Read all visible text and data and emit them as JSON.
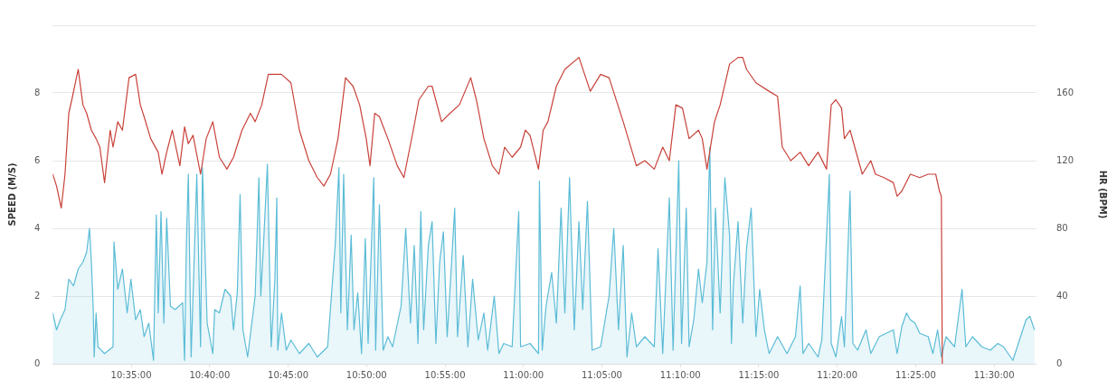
{
  "chart_data": {
    "type": "line",
    "ylabel": "SPEED (M/S)",
    "y2label": "HR (BPM)",
    "grid": "y",
    "xlim": [
      10.5,
      11.545
    ],
    "xticks": [
      {
        "value": 10.5833,
        "label": "10:35:00"
      },
      {
        "value": 10.6667,
        "label": "10:40:00"
      },
      {
        "value": 10.75,
        "label": "10:45:00"
      },
      {
        "value": 10.8333,
        "label": "10:50:00"
      },
      {
        "value": 10.9167,
        "label": "10:55:00"
      },
      {
        "value": 11,
        "label": "11:00:00"
      },
      {
        "value": 11.0833,
        "label": "11:05:00"
      },
      {
        "value": 11.1667,
        "label": "11:10:00"
      },
      {
        "value": 11.25,
        "label": "11:15:00"
      },
      {
        "value": 11.3333,
        "label": "11:20:00"
      },
      {
        "value": 11.4167,
        "label": "11:25:00"
      },
      {
        "value": 11.5,
        "label": "11:30:00"
      }
    ],
    "ylim": [
      0,
      10
    ],
    "yticks": [
      0,
      2,
      4,
      6,
      8,
      {
        "value": 10,
        "label": null
      }
    ],
    "y2lim": [
      0,
      200
    ],
    "y2ticks": [
      0,
      40,
      80,
      120,
      160
    ],
    "series": [
      {
        "type": "area",
        "color": "#5bbcd6",
        "x": [
          10.5,
          10.504,
          10.508,
          10.513,
          10.517,
          10.522,
          10.527,
          10.532,
          10.536,
          10.539,
          10.541,
          10.543,
          10.544,
          10.546,
          10.548,
          10.555,
          10.564,
          10.565,
          10.569,
          10.574,
          10.579,
          10.583,
          10.588,
          10.593,
          10.597,
          10.602,
          10.607,
          10.61,
          10.612,
          10.615,
          10.618,
          10.621,
          10.625,
          10.63,
          10.638,
          10.64,
          10.642,
          10.644,
          10.647,
          10.653,
          10.657,
          10.659,
          10.664,
          10.67,
          10.672,
          10.677,
          10.683,
          10.689,
          10.692,
          10.696,
          10.699,
          10.702,
          10.707,
          10.715,
          10.719,
          10.721,
          10.724,
          10.728,
          10.732,
          10.736,
          10.738,
          10.739,
          10.743,
          10.748,
          10.753,
          10.762,
          10.772,
          10.781,
          10.792,
          10.796,
          10.8,
          10.804,
          10.806,
          10.809,
          10.813,
          10.817,
          10.82,
          10.824,
          10.828,
          10.832,
          10.835,
          10.841,
          10.843,
          10.847,
          10.851,
          10.856,
          10.861,
          10.87,
          10.875,
          10.88,
          10.884,
          10.888,
          10.891,
          10.894,
          10.899,
          10.903,
          10.907,
          10.911,
          10.915,
          10.919,
          10.922,
          10.927,
          10.93,
          10.936,
          10.941,
          10.946,
          10.952,
          10.958,
          10.962,
          10.969,
          10.974,
          10.979,
          10.988,
          10.995,
          10.997,
          11.007,
          11.016,
          11.017,
          11.02,
          11.024,
          11.03,
          11.035,
          11.04,
          11.044,
          11.049,
          11.054,
          11.059,
          11.063,
          11.068,
          11.073,
          11.082,
          11.091,
          11.096,
          11.101,
          11.106,
          11.11,
          11.115,
          11.12,
          11.129,
          11.139,
          11.143,
          11.148,
          11.155,
          11.159,
          11.165,
          11.168,
          11.173,
          11.176,
          11.181,
          11.186,
          11.19,
          11.195,
          11.198,
          11.201,
          11.204,
          11.209,
          11.214,
          11.219,
          11.221,
          11.223,
          11.228,
          11.233,
          11.237,
          11.242,
          11.247,
          11.251,
          11.256,
          11.261,
          11.27,
          11.28,
          11.289,
          11.294,
          11.297,
          11.303,
          11.313,
          11.317,
          11.325,
          11.327,
          11.332,
          11.338,
          11.341,
          11.347,
          11.35,
          11.355,
          11.364,
          11.369,
          11.378,
          11.393,
          11.397,
          11.402,
          11.407,
          11.411,
          11.416,
          11.421,
          11.43,
          11.435,
          11.44,
          11.444,
          11.449,
          11.458,
          11.466,
          11.47,
          11.477,
          11.487,
          11.496,
          11.504,
          11.51,
          11.515,
          11.52,
          11.534,
          11.538,
          11.543
        ],
        "values": [
          1.5,
          1.0,
          1.3,
          1.6,
          2.5,
          2.3,
          2.8,
          3.0,
          3.3,
          4.0,
          3.0,
          1.6,
          0.2,
          1.5,
          0.5,
          0.3,
          0.5,
          3.6,
          2.2,
          2.8,
          1.5,
          2.5,
          1.3,
          1.6,
          0.8,
          1.2,
          0.1,
          4.4,
          1.5,
          4.5,
          1.2,
          4.3,
          1.7,
          1.6,
          1.8,
          0.1,
          3.6,
          5.6,
          0.2,
          5.6,
          0.5,
          5.8,
          1.2,
          0.3,
          1.6,
          1.5,
          2.2,
          2.0,
          1.0,
          2.1,
          5.0,
          1.0,
          0.2,
          2.0,
          5.5,
          2.0,
          3.6,
          5.9,
          0.5,
          2.5,
          4.9,
          0.4,
          1.5,
          0.4,
          0.7,
          0.3,
          0.6,
          0.2,
          0.5,
          2.0,
          3.5,
          5.8,
          1.5,
          5.6,
          1.0,
          3.8,
          1.0,
          2.1,
          0.3,
          3.7,
          0.6,
          5.5,
          0.4,
          4.7,
          0.4,
          0.8,
          0.5,
          1.7,
          4.0,
          1.2,
          3.5,
          0.6,
          4.5,
          1.0,
          3.5,
          4.2,
          0.6,
          3.0,
          3.9,
          0.8,
          2.2,
          4.6,
          0.8,
          3.2,
          0.5,
          2.5,
          0.7,
          1.5,
          0.4,
          2.0,
          0.3,
          0.6,
          0.5,
          4.5,
          0.5,
          0.6,
          0.3,
          5.4,
          0.4,
          1.7,
          2.7,
          1.2,
          4.6,
          1.5,
          5.5,
          1.0,
          4.2,
          1.6,
          4.8,
          0.4,
          0.5,
          2.0,
          4.0,
          1.0,
          3.5,
          0.2,
          1.5,
          0.5,
          0.8,
          0.5,
          3.4,
          0.3,
          4.9,
          0.4,
          6.0,
          0.6,
          4.6,
          0.5,
          1.3,
          2.8,
          1.8,
          3.0,
          6.4,
          1.0,
          4.6,
          1.5,
          5.5,
          3.8,
          0.6,
          2.3,
          4.2,
          1.2,
          3.4,
          4.6,
          0.8,
          2.2,
          1.0,
          0.3,
          0.8,
          0.3,
          0.8,
          2.3,
          0.3,
          0.6,
          0.2,
          0.7,
          5.6,
          0.6,
          0.2,
          1.4,
          0.5,
          5.1,
          0.6,
          0.4,
          1.0,
          0.3,
          0.8,
          1.0,
          0.3,
          1.1,
          1.5,
          1.3,
          1.2,
          0.9,
          0.8,
          0.3,
          1.0,
          0.2,
          0.8,
          0.5,
          2.2,
          0.5,
          0.8,
          0.5,
          0.4,
          0.6,
          0.5,
          0.3,
          0.1,
          1.3,
          1.4,
          1.0
        ]
      },
      {
        "type": "line",
        "axis": "y2",
        "color": "#c8413a",
        "x": [
          10.5,
          10.504,
          10.509,
          10.513,
          10.517,
          10.521,
          10.527,
          10.532,
          10.536,
          10.541,
          10.546,
          10.55,
          10.555,
          10.561,
          10.564,
          10.569,
          10.574,
          10.581,
          10.588,
          10.593,
          10.597,
          10.604,
          10.612,
          10.616,
          10.621,
          10.627,
          10.635,
          10.64,
          10.644,
          10.649,
          10.657,
          10.663,
          10.67,
          10.677,
          10.685,
          10.692,
          10.701,
          10.71,
          10.715,
          10.722,
          10.729,
          10.743,
          10.753,
          10.762,
          10.772,
          10.781,
          10.788,
          10.795,
          10.803,
          10.811,
          10.819,
          10.826,
          10.833,
          10.837,
          10.842,
          10.847,
          10.856,
          10.866,
          10.873,
          10.883,
          10.889,
          10.899,
          10.903,
          10.913,
          10.922,
          10.932,
          10.944,
          10.95,
          10.958,
          10.967,
          10.974,
          10.98,
          10.988,
          10.997,
          11.002,
          11.007,
          11.016,
          11.021,
          11.026,
          11.035,
          11.044,
          11.059,
          11.071,
          11.082,
          11.091,
          11.106,
          11.12,
          11.129,
          11.139,
          11.148,
          11.155,
          11.162,
          11.169,
          11.176,
          11.186,
          11.19,
          11.195,
          11.203,
          11.209,
          11.219,
          11.228,
          11.233,
          11.237,
          11.247,
          11.261,
          11.27,
          11.275,
          11.284,
          11.294,
          11.303,
          11.313,
          11.322,
          11.327,
          11.332,
          11.338,
          11.341,
          11.347,
          11.355,
          11.36,
          11.369,
          11.374,
          11.383,
          11.393,
          11.397,
          11.402,
          11.411,
          11.421,
          11.43,
          11.438,
          11.442,
          11.444,
          11.445
        ],
        "values": [
          112,
          105,
          92,
          112,
          148,
          158,
          174,
          153,
          148,
          138,
          133,
          128,
          107,
          138,
          128,
          143,
          138,
          169,
          171,
          153,
          146,
          133,
          125,
          112,
          125,
          138,
          117,
          140,
          130,
          135,
          112,
          133,
          143,
          122,
          115,
          122,
          138,
          148,
          143,
          153,
          171,
          171,
          166,
          138,
          120,
          110,
          105,
          112,
          133,
          169,
          164,
          153,
          133,
          117,
          148,
          146,
          133,
          117,
          110,
          138,
          156,
          164,
          164,
          143,
          148,
          153,
          169,
          156,
          133,
          117,
          112,
          128,
          122,
          128,
          138,
          135,
          115,
          138,
          143,
          164,
          174,
          181,
          161,
          171,
          169,
          143,
          117,
          120,
          115,
          128,
          120,
          153,
          151,
          133,
          138,
          133,
          115,
          143,
          153,
          177,
          181,
          181,
          174,
          166,
          161,
          158,
          128,
          120,
          125,
          117,
          125,
          115,
          153,
          156,
          151,
          133,
          138,
          122,
          112,
          120,
          112,
          110,
          107,
          99,
          102,
          112,
          110,
          112,
          112,
          102,
          99,
          0
        ]
      }
    ]
  }
}
